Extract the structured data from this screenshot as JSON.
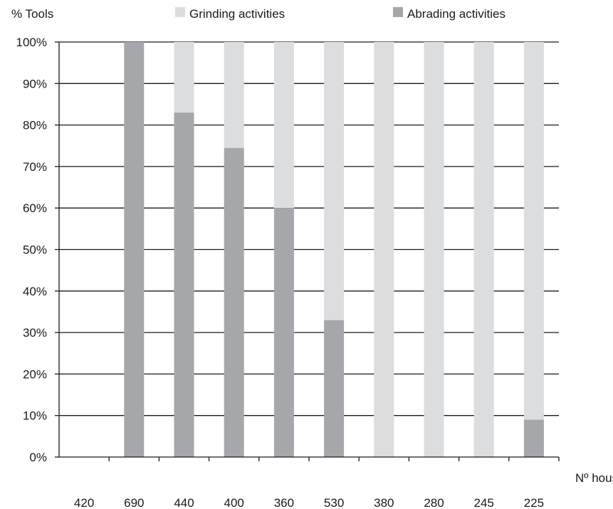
{
  "chart_data": {
    "type": "bar",
    "stacked": true,
    "title": "",
    "ylabel": "% Tools",
    "xlabel": "Nº house",
    "ylim": [
      0,
      100
    ],
    "y_ticks": [
      "0%",
      "10%",
      "20%",
      "30%",
      "40%",
      "50%",
      "60%",
      "70%",
      "80%",
      "90%",
      "100%"
    ],
    "categories": [
      "420",
      "690",
      "440",
      "400",
      "360",
      "530",
      "380",
      "280",
      "245",
      "225"
    ],
    "grid": true,
    "legend": "top",
    "series": [
      {
        "name": "Abrading activities",
        "color": "#a6a7aa",
        "values": [
          0,
          100,
          83,
          74.5,
          60,
          33,
          0,
          0,
          0,
          9
        ]
      },
      {
        "name": "Grinding activities",
        "color": "#dcdddf",
        "values": [
          0,
          0,
          17,
          25.5,
          40,
          67,
          100,
          100,
          100,
          91
        ]
      }
    ]
  }
}
